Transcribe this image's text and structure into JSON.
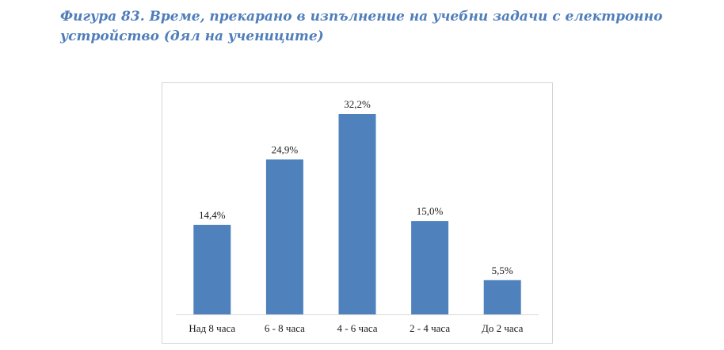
{
  "figure": {
    "title": "Фигура 83. Време, прекарано в изпълнение на учебни задачи с електронно устройство (дял на учениците)"
  },
  "colors": {
    "bar": "#4F81BD",
    "title": "#4F7EBA",
    "axis": "#d9d9d9"
  },
  "chart_data": {
    "type": "bar",
    "title": "",
    "xlabel": "",
    "ylabel": "",
    "categories": [
      "Над 8 часа",
      "6 - 8 часа",
      "4 - 6 часа",
      "2 - 4 часа",
      "До 2 часа"
    ],
    "values": [
      14.4,
      24.9,
      32.2,
      15.0,
      5.5
    ],
    "data_labels": [
      "14,4%",
      "24,9%",
      "32,2%",
      "15,0%",
      "5,5%"
    ],
    "unit": "%",
    "ylim": [
      0,
      32.2
    ],
    "grid": false,
    "legend": "none"
  }
}
